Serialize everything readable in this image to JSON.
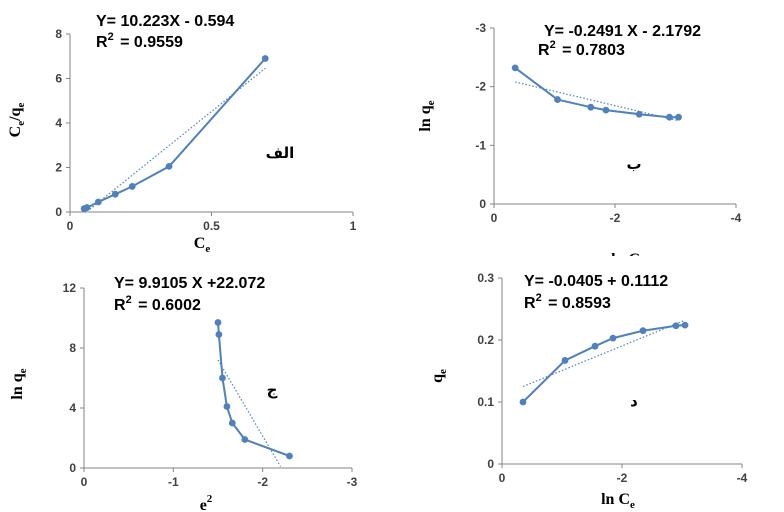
{
  "colors": {
    "series": "#4f81bd",
    "trend": "#4f81bd",
    "axis": "#868686",
    "text": "#000000"
  },
  "chart_data": [
    {
      "type": "scatter",
      "panel_label": "الف",
      "equation": "Y= 10.223X - 0.594",
      "r2_label": "R",
      "r2_sup": "2",
      "r2_value": "= 0.9559",
      "xlabel": "C",
      "xlabel_sub": "e",
      "ylabel": "C",
      "ylabel_sub": "e",
      "ylabel_tail": "/q",
      "ylabel_tail_sub": "e",
      "xlim": [
        0,
        1
      ],
      "ylim": [
        0,
        8
      ],
      "x_ticks": [
        0,
        0.5,
        1
      ],
      "x_tick_labels": [
        "0",
        "0.5",
        "1"
      ],
      "y_ticks": [
        0,
        2,
        4,
        6,
        8
      ],
      "y_tick_labels": [
        "0",
        "2",
        "4",
        "6",
        "8"
      ],
      "points": [
        [
          0.05,
          0.15
        ],
        [
          0.06,
          0.2
        ],
        [
          0.1,
          0.45
        ],
        [
          0.16,
          0.8
        ],
        [
          0.22,
          1.15
        ],
        [
          0.35,
          2.05
        ],
        [
          0.69,
          6.9
        ]
      ],
      "trendline": {
        "slope": 10.223,
        "intercept": -0.594,
        "x_range": [
          0.07,
          0.69
        ]
      }
    },
    {
      "type": "scatter",
      "panel_label": "ب",
      "equation": "Y= -0.2491 X - 2.1792",
      "r2_label": "R",
      "r2_sup": "2",
      "r2_value": "= 0.7803",
      "xlabel": "ln C",
      "xlabel_sub": "e",
      "ylabel": "ln q",
      "ylabel_sub": "e",
      "ylabel_tail": "",
      "ylabel_tail_sub": "",
      "xlim": [
        0,
        -4
      ],
      "ylim": [
        0,
        -3
      ],
      "x_ticks": [
        0,
        -2,
        -4
      ],
      "x_tick_labels": [
        "0",
        "-2",
        "-4"
      ],
      "y_ticks": [
        0,
        -1,
        -2,
        -3
      ],
      "y_tick_labels": [
        "0",
        "-1",
        "-2",
        "-3"
      ],
      "points": [
        [
          -0.35,
          -2.32
        ],
        [
          -1.05,
          -1.78
        ],
        [
          -1.6,
          -1.65
        ],
        [
          -1.85,
          -1.6
        ],
        [
          -2.4,
          -1.53
        ],
        [
          -2.9,
          -1.48
        ],
        [
          -3.05,
          -1.48
        ]
      ],
      "trendline": {
        "x_range": [
          -0.35,
          -3.05
        ],
        "y_range": [
          -2.08,
          -1.42
        ]
      }
    },
    {
      "type": "scatter",
      "panel_label": "ج",
      "equation": "Y= 9.9105 X +22.072",
      "r2_label": "R",
      "r2_sup": "2",
      "r2_value": "= 0.6002",
      "xlabel": "e",
      "xlabel_sub": "",
      "xlabel_sup": "2",
      "ylabel": "ln q",
      "ylabel_sub": "e",
      "ylabel_tail": "",
      "ylabel_tail_sub": "",
      "xlim": [
        0,
        -3
      ],
      "ylim": [
        0,
        12
      ],
      "x_ticks": [
        0,
        -1,
        -2,
        -3
      ],
      "x_tick_labels": [
        "0",
        "-1",
        "-2",
        "-3"
      ],
      "y_ticks": [
        0,
        4,
        8,
        12
      ],
      "y_tick_labels": [
        "0",
        "4",
        "8",
        "12"
      ],
      "points": [
        [
          -1.5,
          9.7
        ],
        [
          -1.51,
          8.9
        ],
        [
          -1.55,
          6.0
        ],
        [
          -1.6,
          4.1
        ],
        [
          -1.66,
          3.0
        ],
        [
          -1.8,
          1.9
        ],
        [
          -2.3,
          0.8
        ]
      ],
      "trendline": {
        "x_range": [
          -1.5,
          -2.2
        ],
        "y_range": [
          7.2,
          0.1
        ]
      }
    },
    {
      "type": "scatter",
      "panel_label": "د",
      "equation": "Y= -0.0405 + 0.1112",
      "r2_label": "R",
      "r2_sup": "2",
      "r2_value": "= 0.8593",
      "xlabel": "ln C",
      "xlabel_sub": "e",
      "ylabel": "q",
      "ylabel_sub": "e",
      "ylabel_tail": "",
      "ylabel_tail_sub": "",
      "xlim": [
        0,
        -4
      ],
      "ylim": [
        0,
        0.3
      ],
      "x_ticks": [
        0,
        -2,
        -4
      ],
      "x_tick_labels": [
        "0",
        "-2",
        "-4"
      ],
      "y_ticks": [
        0,
        0.1,
        0.2,
        0.3
      ],
      "y_tick_labels": [
        "0",
        "0.1",
        "0.2",
        "0.3"
      ],
      "points": [
        [
          -0.35,
          0.1
        ],
        [
          -1.05,
          0.167
        ],
        [
          -1.55,
          0.19
        ],
        [
          -1.85,
          0.203
        ],
        [
          -2.35,
          0.215
        ],
        [
          -2.9,
          0.223
        ],
        [
          -3.05,
          0.224
        ]
      ],
      "trendline": {
        "x_range": [
          -0.35,
          -3.05
        ],
        "y_range": [
          0.125,
          0.232
        ]
      }
    }
  ]
}
